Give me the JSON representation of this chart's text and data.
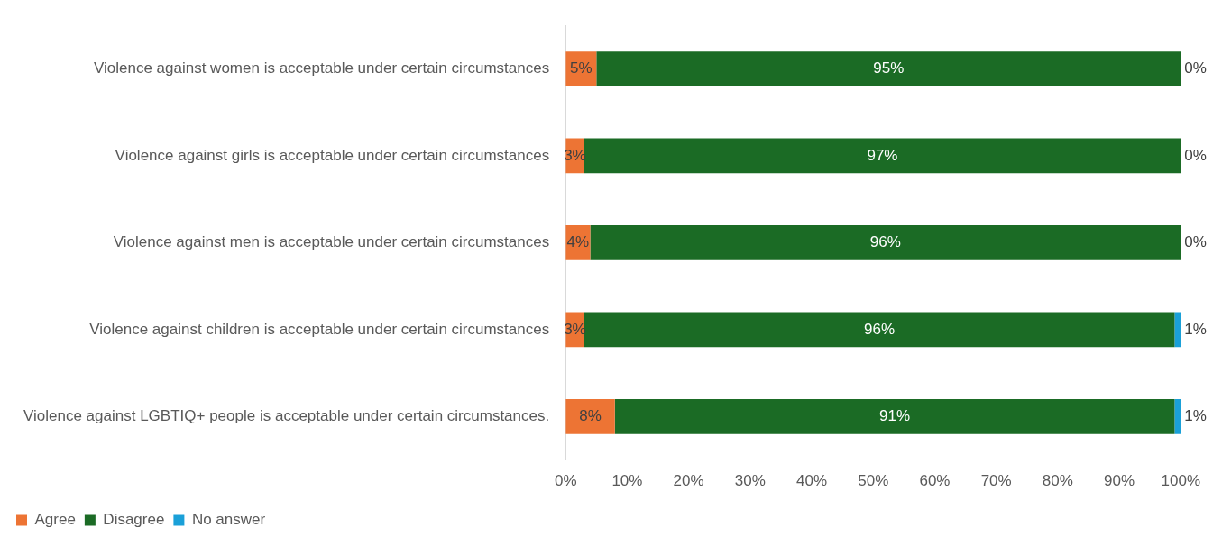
{
  "chart_data": {
    "type": "bar",
    "orientation": "horizontal",
    "stacked": true,
    "categories": [
      "Violence against women is acceptable under certain circumstances",
      "Violence against girls is acceptable under certain circumstances",
      "Violence against men is acceptable under certain circumstances",
      "Violence against children is acceptable under certain circumstances",
      "Violence against LGBTIQ+ people is acceptable under certain circumstances."
    ],
    "series": [
      {
        "name": "Agree",
        "color": "#ed7434",
        "values": [
          5,
          3,
          4,
          3,
          8
        ],
        "value_labels": [
          "5%",
          "3%",
          "4%",
          "3%",
          "8%"
        ]
      },
      {
        "name": "Disagree",
        "color": "#1b6b25",
        "values": [
          95,
          97,
          96,
          96,
          91
        ],
        "value_labels": [
          "95%",
          "97%",
          "96%",
          "96%",
          "91%"
        ]
      },
      {
        "name": "No answer",
        "color": "#1aa0d8",
        "values": [
          0,
          0,
          0,
          1,
          1
        ],
        "value_labels": [
          "0%",
          "0%",
          "0%",
          "1%",
          "1%"
        ]
      }
    ],
    "xlim": [
      0,
      100
    ],
    "xticks": [
      {
        "value": 0,
        "label": "0%"
      },
      {
        "value": 10,
        "label": "10%"
      },
      {
        "value": 20,
        "label": "20%"
      },
      {
        "value": 30,
        "label": "30%"
      },
      {
        "value": 40,
        "label": "40%"
      },
      {
        "value": 50,
        "label": "50%"
      },
      {
        "value": 60,
        "label": "60%"
      },
      {
        "value": 70,
        "label": "70%"
      },
      {
        "value": 80,
        "label": "80%"
      },
      {
        "value": 90,
        "label": "90%"
      },
      {
        "value": 100,
        "label": "100%"
      }
    ],
    "grid": false,
    "legend": "bottom left"
  }
}
